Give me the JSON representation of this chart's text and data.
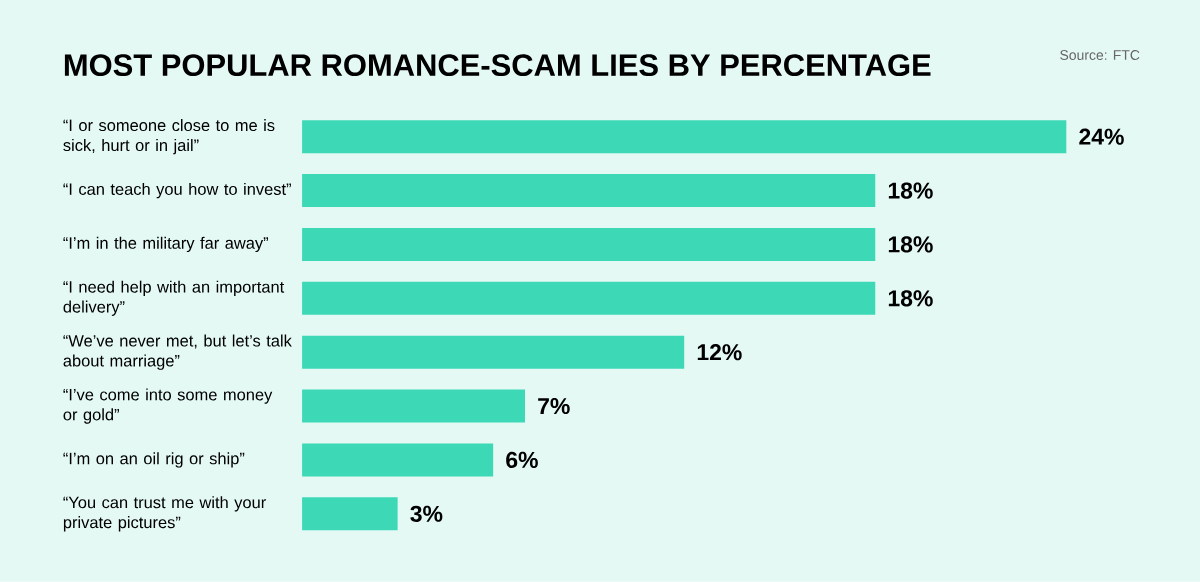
{
  "chart_data": {
    "type": "bar",
    "orientation": "horizontal",
    "title": "MOST POPULAR ROMANCE-SCAM LIES BY PERCENTAGE",
    "annotations": [
      "Source: FTC"
    ],
    "categories": [
      "“I or someone close to me is sick, hurt or in jail”",
      "“I can teach you how to invest”",
      "“I’m in the military far away”",
      "“I need help with an important delivery”",
      "“We’ve never met, but let’s talk about marriage”",
      "“I’ve come into some money or gold”",
      "“I’m on an oil rig or ship”",
      "“You can trust me with your private pictures”"
    ],
    "values": [
      24,
      18,
      18,
      18,
      12,
      7,
      6,
      3
    ],
    "value_labels": [
      "24%",
      "18%",
      "18%",
      "18%",
      "12%",
      "7%",
      "6%",
      "3%"
    ],
    "color": "#3dd9b6",
    "tick_labels": "y"
  }
}
